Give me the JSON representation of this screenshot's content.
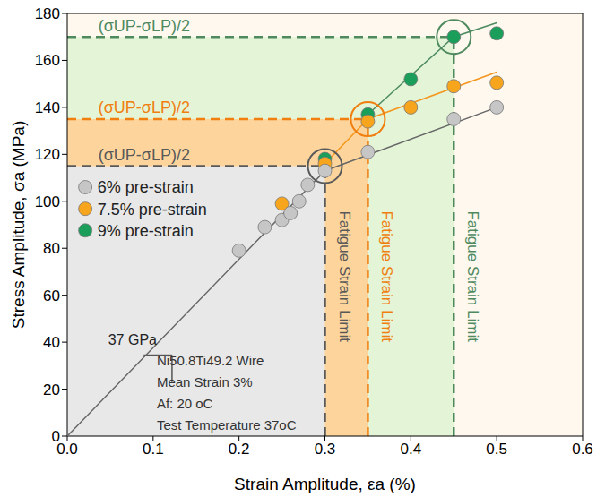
{
  "chart_data": {
    "type": "scatter",
    "x_label": "Strain Amplitude, εa (%)",
    "y_label": "Stress Amplitude, σa (MPa)",
    "xlim": [
      0,
      0.6
    ],
    "xticks": [
      {
        "value": 0,
        "label": "0.0"
      },
      0.1,
      0.2,
      0.3,
      0.4,
      0.5,
      0.6
    ],
    "ylim": [
      0,
      180
    ],
    "yticks": [
      0,
      20,
      40,
      60,
      80,
      100,
      120,
      140,
      160,
      180
    ],
    "grid": false,
    "legend": "left",
    "marker": "circle",
    "series": [
      {
        "name": "6% pre-strain",
        "color": "#c6c6c6",
        "x": [
          0.2,
          0.23,
          0.25,
          0.26,
          0.27,
          0.28,
          0.3,
          0.35,
          0.45,
          0.5
        ],
        "values": [
          79,
          89,
          92,
          95,
          100,
          107,
          113,
          121,
          135,
          140
        ]
      },
      {
        "name": "7.5% pre-strain",
        "color": "#f8a51e",
        "x": [
          0.25,
          0.3,
          0.35,
          0.4,
          0.45,
          0.5
        ],
        "values": [
          99,
          116,
          134,
          140,
          149,
          150.5
        ]
      },
      {
        "name": "9% pre-strain",
        "color": "#1b9e5a",
        "x": [
          0.3,
          0.35,
          0.4,
          0.45,
          0.5
        ],
        "values": [
          118,
          137,
          152,
          170,
          171.5
        ]
      }
    ],
    "trend_lines": [
      {
        "color": "#666666",
        "line_style": "solid",
        "x": [
          0,
          0.3,
          0.5
        ],
        "values": [
          0,
          113,
          140
        ]
      },
      {
        "color": "#f5961e",
        "line_style": "solid",
        "x": [
          0.3,
          0.35,
          0.5
        ],
        "values": [
          116,
          135,
          155
        ]
      },
      {
        "color": "#4e8b60",
        "line_style": "solid",
        "x": [
          0.35,
          0.45,
          0.5
        ],
        "values": [
          137,
          170,
          176
        ]
      }
    ],
    "fatigue_limits": [
      {
        "x": 0.3,
        "y": 115,
        "color": "#595959",
        "line_style": "dashed",
        "label": "(σUP-σLP)/2",
        "text": "Fatigue Strain Limit"
      },
      {
        "x": 0.35,
        "y": 135,
        "color": "#f07f0f",
        "line_style": "dashed",
        "label": "(σUP-σLP)/2",
        "text": "Fatigue Strain Limit"
      },
      {
        "x": 0.45,
        "y": 170,
        "color": "#4f8a5f",
        "line_style": "dashed",
        "label": "(σUP-σLP)/2",
        "text": "Fatigue Strain Limit"
      }
    ],
    "slope_label": "37 GPa",
    "annotations": [
      "Ni50.8Ti49.2 Wire",
      "Mean Strain 3%",
      "Af: 20 oC",
      "Test Temperature 37oC"
    ]
  }
}
